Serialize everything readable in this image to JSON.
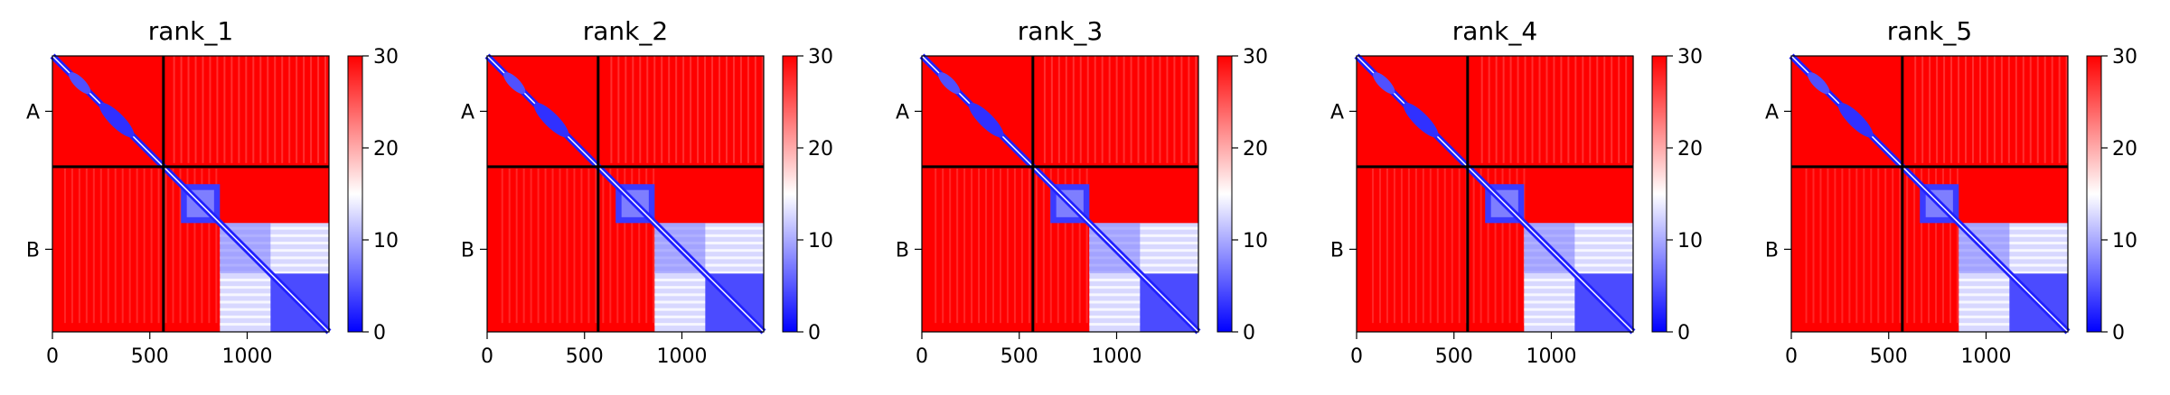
{
  "chart_data": [
    {
      "type": "heatmap",
      "title": "rank_1",
      "ylabels": [
        "A",
        "B"
      ],
      "chain_boundary": 570,
      "extent": [
        0,
        1420
      ],
      "xticks": [
        0,
        500,
        1000
      ],
      "colorbar": {
        "range": [
          0,
          30
        ],
        "ticks": [
          0,
          10,
          20,
          30
        ],
        "colors": [
          "#0000ff",
          "#ffffff",
          "#ff0000"
        ]
      }
    },
    {
      "type": "heatmap",
      "title": "rank_2",
      "ylabels": [
        "A",
        "B"
      ],
      "chain_boundary": 570,
      "extent": [
        0,
        1420
      ],
      "xticks": [
        0,
        500,
        1000
      ],
      "colorbar": {
        "range": [
          0,
          30
        ],
        "ticks": [
          0,
          10,
          20,
          30
        ],
        "colors": [
          "#0000ff",
          "#ffffff",
          "#ff0000"
        ]
      }
    },
    {
      "type": "heatmap",
      "title": "rank_3",
      "ylabels": [
        "A",
        "B"
      ],
      "chain_boundary": 570,
      "extent": [
        0,
        1420
      ],
      "xticks": [
        0,
        500,
        1000
      ],
      "colorbar": {
        "range": [
          0,
          30
        ],
        "ticks": [
          0,
          10,
          20,
          30
        ],
        "colors": [
          "#0000ff",
          "#ffffff",
          "#ff0000"
        ]
      }
    },
    {
      "type": "heatmap",
      "title": "rank_4",
      "ylabels": [
        "A",
        "B"
      ],
      "chain_boundary": 570,
      "extent": [
        0,
        1420
      ],
      "xticks": [
        0,
        500,
        1000
      ],
      "colorbar": {
        "range": [
          0,
          30
        ],
        "ticks": [
          0,
          10,
          20,
          30
        ],
        "colors": [
          "#0000ff",
          "#ffffff",
          "#ff0000"
        ]
      }
    },
    {
      "type": "heatmap",
      "title": "rank_5",
      "ylabels": [
        "A",
        "B"
      ],
      "chain_boundary": 570,
      "extent": [
        0,
        1420
      ],
      "xticks": [
        0,
        500,
        1000
      ],
      "colorbar": {
        "range": [
          0,
          30
        ],
        "ticks": [
          0,
          10,
          20,
          30
        ],
        "colors": [
          "#0000ff",
          "#ffffff",
          "#ff0000"
        ]
      }
    }
  ]
}
